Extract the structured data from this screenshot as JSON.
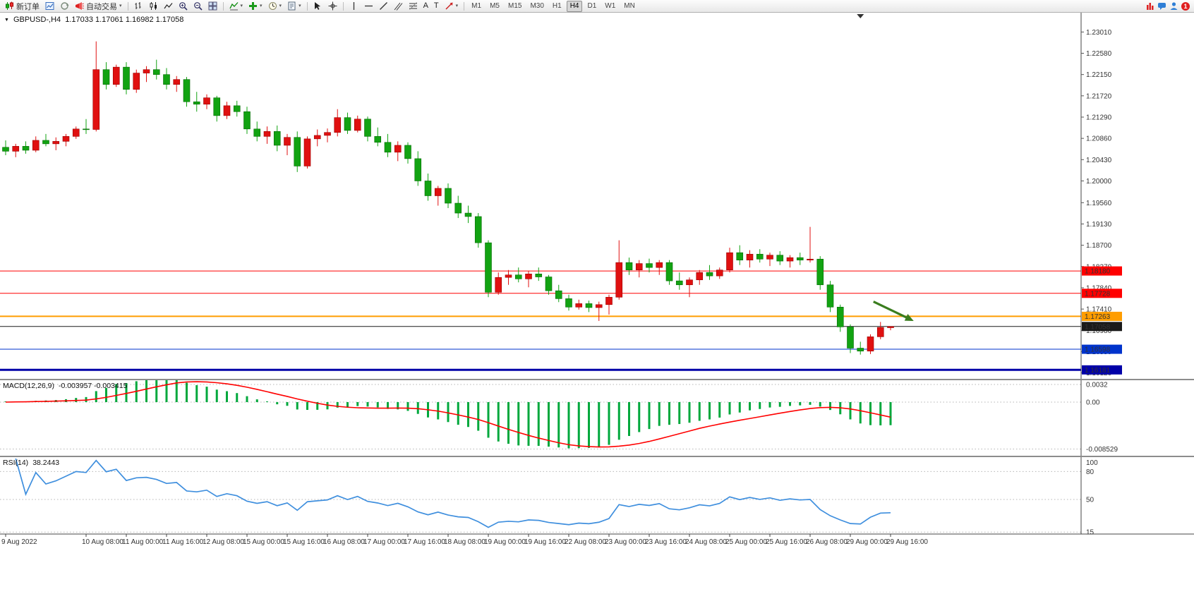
{
  "icons": {
    "caret_down": "▾",
    "collapse_triangle": "▼",
    "text_tool": "A",
    "label_tool": "T"
  },
  "toolbar": {
    "new_order_label": "新订单",
    "autotrading_label": "自动交易",
    "timeframes": [
      "M1",
      "M5",
      "M15",
      "M30",
      "H1",
      "H4",
      "D1",
      "W1",
      "MN"
    ],
    "active_timeframe": "H4",
    "notification_badge": "1"
  },
  "chart": {
    "symbol_label": "GBPUSD-,H4",
    "ohlc_text": "1.17033 1.17061 1.16982 1.17058",
    "macd_label": "MACD(12,26,9)",
    "macd_values": "-0.003957 -0.003415",
    "rsi_label": "RSI(14)",
    "rsi_value": "38.2443"
  },
  "chart_data": {
    "type": "candlestick",
    "symbol": "GBPUSD-",
    "timeframe": "H4",
    "up_color": "#e01010",
    "down_color": "#12a312",
    "price_axis": {
      "max": 1.234,
      "min": 1.16,
      "labels": [
        1.2301,
        1.2258,
        1.2215,
        1.2172,
        1.2129,
        1.2086,
        1.2043,
        1.2,
        1.1956,
        1.1913,
        1.187,
        1.1827,
        1.1784,
        1.1741,
        1.1698,
        1.1655,
        1.1612
      ]
    },
    "hlines": [
      {
        "price": 1.1818,
        "label": "1.18180",
        "color": "#ff0000",
        "width": 1
      },
      {
        "price": 1.17728,
        "label": "1.17728",
        "color": "#ff0000",
        "width": 1
      },
      {
        "price": 1.17263,
        "label": "1.17263",
        "color": "#ff9d00",
        "width": 2
      },
      {
        "price": 1.17058,
        "label": "1.17058",
        "color": "#1a1a1a",
        "width": 1
      },
      {
        "price": 1.16598,
        "label": "1.16598",
        "color": "#0033cc",
        "width": 1
      },
      {
        "price": 1.16181,
        "label": "1.16181",
        "color": "#0000a8",
        "width": 3
      }
    ],
    "current_price": 1.17058,
    "shift_marker_bar": 85,
    "candles": [
      [
        1.2068,
        1.2082,
        1.2052,
        1.206
      ],
      [
        1.206,
        1.2075,
        1.2048,
        1.207
      ],
      [
        1.207,
        1.208,
        1.2055,
        1.2062
      ],
      [
        1.2062,
        1.209,
        1.2058,
        1.2082
      ],
      [
        1.2082,
        1.2095,
        1.207,
        1.2075
      ],
      [
        1.2075,
        1.2088,
        1.2062,
        1.208
      ],
      [
        1.208,
        1.2095,
        1.207,
        1.209
      ],
      [
        1.209,
        1.211,
        1.2085,
        1.2105
      ],
      [
        1.2105,
        1.2125,
        1.2095,
        1.2104
      ],
      [
        1.2104,
        1.2282,
        1.21,
        1.2225
      ],
      [
        1.2225,
        1.224,
        1.2185,
        1.2195
      ],
      [
        1.2195,
        1.2235,
        1.219,
        1.223
      ],
      [
        1.223,
        1.224,
        1.2175,
        1.2185
      ],
      [
        1.2185,
        1.2225,
        1.2178,
        1.2218
      ],
      [
        1.2218,
        1.2232,
        1.22,
        1.2225
      ],
      [
        1.2225,
        1.2245,
        1.2205,
        1.2215
      ],
      [
        1.2215,
        1.2228,
        1.2185,
        1.2195
      ],
      [
        1.2195,
        1.2212,
        1.218,
        1.2205
      ],
      [
        1.2205,
        1.221,
        1.215,
        1.216
      ],
      [
        1.216,
        1.218,
        1.214,
        1.2155
      ],
      [
        1.2155,
        1.2175,
        1.2145,
        1.2168
      ],
      [
        1.2168,
        1.2172,
        1.212,
        1.2132
      ],
      [
        1.2132,
        1.216,
        1.2125,
        1.2152
      ],
      [
        1.2152,
        1.2162,
        1.213,
        1.214
      ],
      [
        1.214,
        1.215,
        1.2095,
        1.2105
      ],
      [
        1.2105,
        1.212,
        1.208,
        1.209
      ],
      [
        1.209,
        1.211,
        1.2075,
        1.21
      ],
      [
        1.21,
        1.2112,
        1.206,
        1.2072
      ],
      [
        1.2072,
        1.2095,
        1.2052,
        1.2088
      ],
      [
        1.2088,
        1.21,
        1.2018,
        1.203
      ],
      [
        1.203,
        1.209,
        1.2025,
        1.2085
      ],
      [
        1.2085,
        1.2104,
        1.207,
        1.2092
      ],
      [
        1.2092,
        1.2106,
        1.2078,
        1.2098
      ],
      [
        1.2098,
        1.2145,
        1.209,
        1.2128
      ],
      [
        1.2128,
        1.2138,
        1.2095,
        1.2102
      ],
      [
        1.2102,
        1.2132,
        1.2098,
        1.2125
      ],
      [
        1.2125,
        1.213,
        1.208,
        1.209
      ],
      [
        1.209,
        1.2108,
        1.207,
        1.2078
      ],
      [
        1.2078,
        1.2095,
        1.2048,
        1.2058
      ],
      [
        1.2058,
        1.208,
        1.204,
        1.2072
      ],
      [
        1.2072,
        1.2078,
        1.2035,
        1.2045
      ],
      [
        1.2045,
        1.206,
        1.199,
        1.2
      ],
      [
        1.2,
        1.2015,
        1.196,
        1.197
      ],
      [
        1.197,
        1.199,
        1.195,
        1.1985
      ],
      [
        1.1985,
        1.1995,
        1.1945,
        1.1955
      ],
      [
        1.1955,
        1.197,
        1.1925,
        1.1935
      ],
      [
        1.1935,
        1.195,
        1.1915,
        1.1928
      ],
      [
        1.1928,
        1.1935,
        1.1865,
        1.1875
      ],
      [
        1.1875,
        1.188,
        1.1765,
        1.1775
      ],
      [
        1.1775,
        1.1815,
        1.177,
        1.1805
      ],
      [
        1.1805,
        1.182,
        1.179,
        1.181
      ],
      [
        1.181,
        1.1825,
        1.1795,
        1.1802
      ],
      [
        1.1802,
        1.1818,
        1.1785,
        1.1812
      ],
      [
        1.1812,
        1.1825,
        1.1798,
        1.1806
      ],
      [
        1.1806,
        1.181,
        1.177,
        1.1778
      ],
      [
        1.1778,
        1.179,
        1.1755,
        1.1762
      ],
      [
        1.1762,
        1.177,
        1.1738,
        1.1745
      ],
      [
        1.1745,
        1.176,
        1.174,
        1.1752
      ],
      [
        1.1752,
        1.1758,
        1.1735,
        1.1744
      ],
      [
        1.1744,
        1.1756,
        1.1717,
        1.175
      ],
      [
        1.175,
        1.177,
        1.173,
        1.1765
      ],
      [
        1.1765,
        1.188,
        1.176,
        1.1835
      ],
      [
        1.1835,
        1.1845,
        1.181,
        1.182
      ],
      [
        1.182,
        1.184,
        1.1805,
        1.1833
      ],
      [
        1.1833,
        1.1843,
        1.1815,
        1.1825
      ],
      [
        1.1825,
        1.184,
        1.181,
        1.1835
      ],
      [
        1.1835,
        1.184,
        1.179,
        1.1798
      ],
      [
        1.1798,
        1.1815,
        1.178,
        1.179
      ],
      [
        1.179,
        1.1805,
        1.1765,
        1.18
      ],
      [
        1.18,
        1.182,
        1.179,
        1.1815
      ],
      [
        1.1815,
        1.183,
        1.18,
        1.1808
      ],
      [
        1.1808,
        1.1825,
        1.1802,
        1.182
      ],
      [
        1.182,
        1.1865,
        1.1815,
        1.1855
      ],
      [
        1.1855,
        1.187,
        1.183,
        1.184
      ],
      [
        1.184,
        1.186,
        1.1825,
        1.1852
      ],
      [
        1.1852,
        1.1862,
        1.1835,
        1.1842
      ],
      [
        1.1842,
        1.1855,
        1.1828,
        1.185
      ],
      [
        1.185,
        1.1858,
        1.183,
        1.1838
      ],
      [
        1.1838,
        1.185,
        1.1825,
        1.1845
      ],
      [
        1.1845,
        1.1855,
        1.183,
        1.184
      ],
      [
        1.184,
        1.1907,
        1.1835,
        1.1842
      ],
      [
        1.1842,
        1.1848,
        1.178,
        1.179
      ],
      [
        1.179,
        1.1798,
        1.1735,
        1.1745
      ],
      [
        1.1745,
        1.175,
        1.1695,
        1.1705
      ],
      [
        1.1705,
        1.171,
        1.1652,
        1.1662
      ],
      [
        1.1662,
        1.1675,
        1.1649,
        1.1656
      ],
      [
        1.1656,
        1.169,
        1.165,
        1.1685
      ],
      [
        1.1685,
        1.1715,
        1.168,
        1.1704
      ],
      [
        1.17033,
        1.17061,
        1.16982,
        1.17058
      ]
    ],
    "time_labels": [
      {
        "bar": 0,
        "text": "9 Aug 2022"
      },
      {
        "bar": 8,
        "text": "10 Aug 08:00"
      },
      {
        "bar": 12,
        "text": "11 Aug 00:00"
      },
      {
        "bar": 16,
        "text": "11 Aug 16:00"
      },
      {
        "bar": 20,
        "text": "12 Aug 08:00"
      },
      {
        "bar": 24,
        "text": "15 Aug 00:00"
      },
      {
        "bar": 28,
        "text": "15 Aug 16:00"
      },
      {
        "bar": 32,
        "text": "16 Aug 08:00"
      },
      {
        "bar": 36,
        "text": "17 Aug 00:00"
      },
      {
        "bar": 40,
        "text": "17 Aug 16:00"
      },
      {
        "bar": 44,
        "text": "18 Aug 08:00"
      },
      {
        "bar": 48,
        "text": "19 Aug 00:00"
      },
      {
        "bar": 52,
        "text": "19 Aug 16:00"
      },
      {
        "bar": 56,
        "text": "22 Aug 08:00"
      },
      {
        "bar": 60,
        "text": "23 Aug 00:00"
      },
      {
        "bar": 64,
        "text": "23 Aug 16:00"
      },
      {
        "bar": 68,
        "text": "24 Aug 08:00"
      },
      {
        "bar": 72,
        "text": "25 Aug 00:00"
      },
      {
        "bar": 76,
        "text": "25 Aug 16:00"
      },
      {
        "bar": 80,
        "text": "26 Aug 08:00"
      },
      {
        "bar": 84,
        "text": "29 Aug 00:00"
      },
      {
        "bar": 88,
        "text": "29 Aug 16:00"
      }
    ],
    "macd": {
      "params": "12,26,9",
      "histogram_color": "#00a83c",
      "signal_color": "#ff0000",
      "scale": {
        "max_label": "0.0032",
        "zero_label": "0.00",
        "min_label": "-0.008529",
        "max": 0.0032,
        "min": -0.008529
      }
    },
    "rsi": {
      "period": 14,
      "color": "#3f8fde",
      "levels": [
        80,
        50,
        15
      ],
      "scale_top_label": "100"
    },
    "annotations": [
      {
        "type": "arrow",
        "color": "#3a7d1e",
        "from_bar": 86.3,
        "from_price": 1.1756,
        "to_bar": 90.3,
        "to_price": 1.1717
      }
    ]
  }
}
